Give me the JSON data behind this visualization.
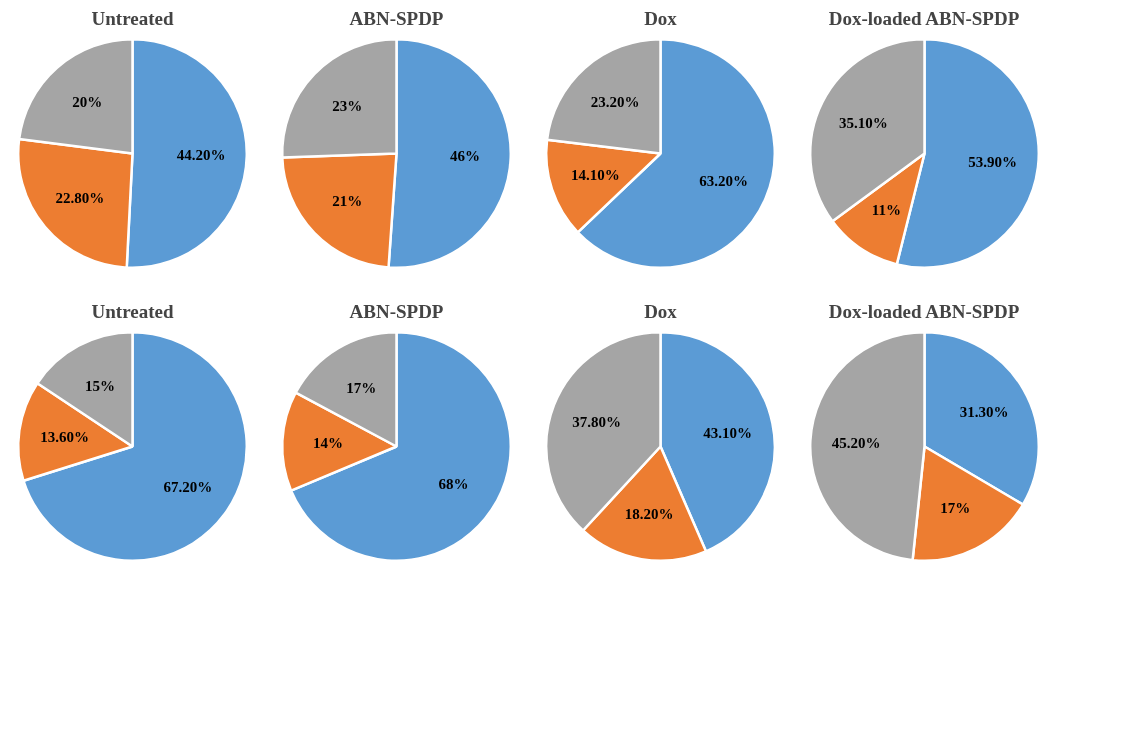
{
  "chart_data": [
    {
      "type": "pie",
      "title": "Untreated",
      "categories": [
        null,
        null,
        null
      ],
      "values": [
        44.2,
        22.8,
        20
      ],
      "colors": [
        "#5b9bd5",
        "#ed7d31",
        "#a5a5a5"
      ],
      "value_labels": [
        "44.20%",
        "22.80%",
        "20%"
      ]
    },
    {
      "type": "pie",
      "title": "ABN-SPDP",
      "categories": [
        null,
        null,
        null
      ],
      "values": [
        46,
        21,
        23
      ],
      "colors": [
        "#5b9bd5",
        "#ed7d31",
        "#a5a5a5"
      ],
      "value_labels": [
        "46%",
        "21%",
        "23%"
      ]
    },
    {
      "type": "pie",
      "title": "Dox",
      "categories": [
        null,
        null,
        null
      ],
      "values": [
        63.2,
        14.1,
        23.2
      ],
      "colors": [
        "#5b9bd5",
        "#ed7d31",
        "#a5a5a5"
      ],
      "value_labels": [
        "63.20%",
        "14.10%",
        "23.20%"
      ]
    },
    {
      "type": "pie",
      "title": "Dox-loaded ABN-SPDP",
      "categories": [
        null,
        null,
        null
      ],
      "values": [
        53.9,
        11,
        35.1
      ],
      "colors": [
        "#5b9bd5",
        "#ed7d31",
        "#a5a5a5"
      ],
      "value_labels": [
        "53.90%",
        "11%",
        "35.10%"
      ]
    },
    {
      "type": "pie",
      "title": "Untreated",
      "categories": [
        null,
        null,
        null
      ],
      "values": [
        67.2,
        13.6,
        15
      ],
      "colors": [
        "#5b9bd5",
        "#ed7d31",
        "#a5a5a5"
      ],
      "value_labels": [
        "67.20%",
        "13.60%",
        "15%"
      ]
    },
    {
      "type": "pie",
      "title": "ABN-SPDP",
      "categories": [
        null,
        null,
        null
      ],
      "values": [
        68,
        14,
        17
      ],
      "colors": [
        "#5b9bd5",
        "#ed7d31",
        "#a5a5a5"
      ],
      "value_labels": [
        "68%",
        "14%",
        "17%"
      ]
    },
    {
      "type": "pie",
      "title": "Dox",
      "categories": [
        null,
        null,
        null
      ],
      "values": [
        43.1,
        18.2,
        37.8
      ],
      "colors": [
        "#5b9bd5",
        "#ed7d31",
        "#a5a5a5"
      ],
      "value_labels": [
        "43.10%",
        "18.20%",
        "37.80%"
      ]
    },
    {
      "type": "pie",
      "title": "Dox-loaded ABN-SPDP",
      "categories": [
        null,
        null,
        null
      ],
      "values": [
        31.3,
        17,
        45.2
      ],
      "colors": [
        "#5b9bd5",
        "#ed7d31",
        "#a5a5a5"
      ],
      "value_labels": [
        "31.30%",
        "17%",
        "45.20%"
      ]
    }
  ]
}
